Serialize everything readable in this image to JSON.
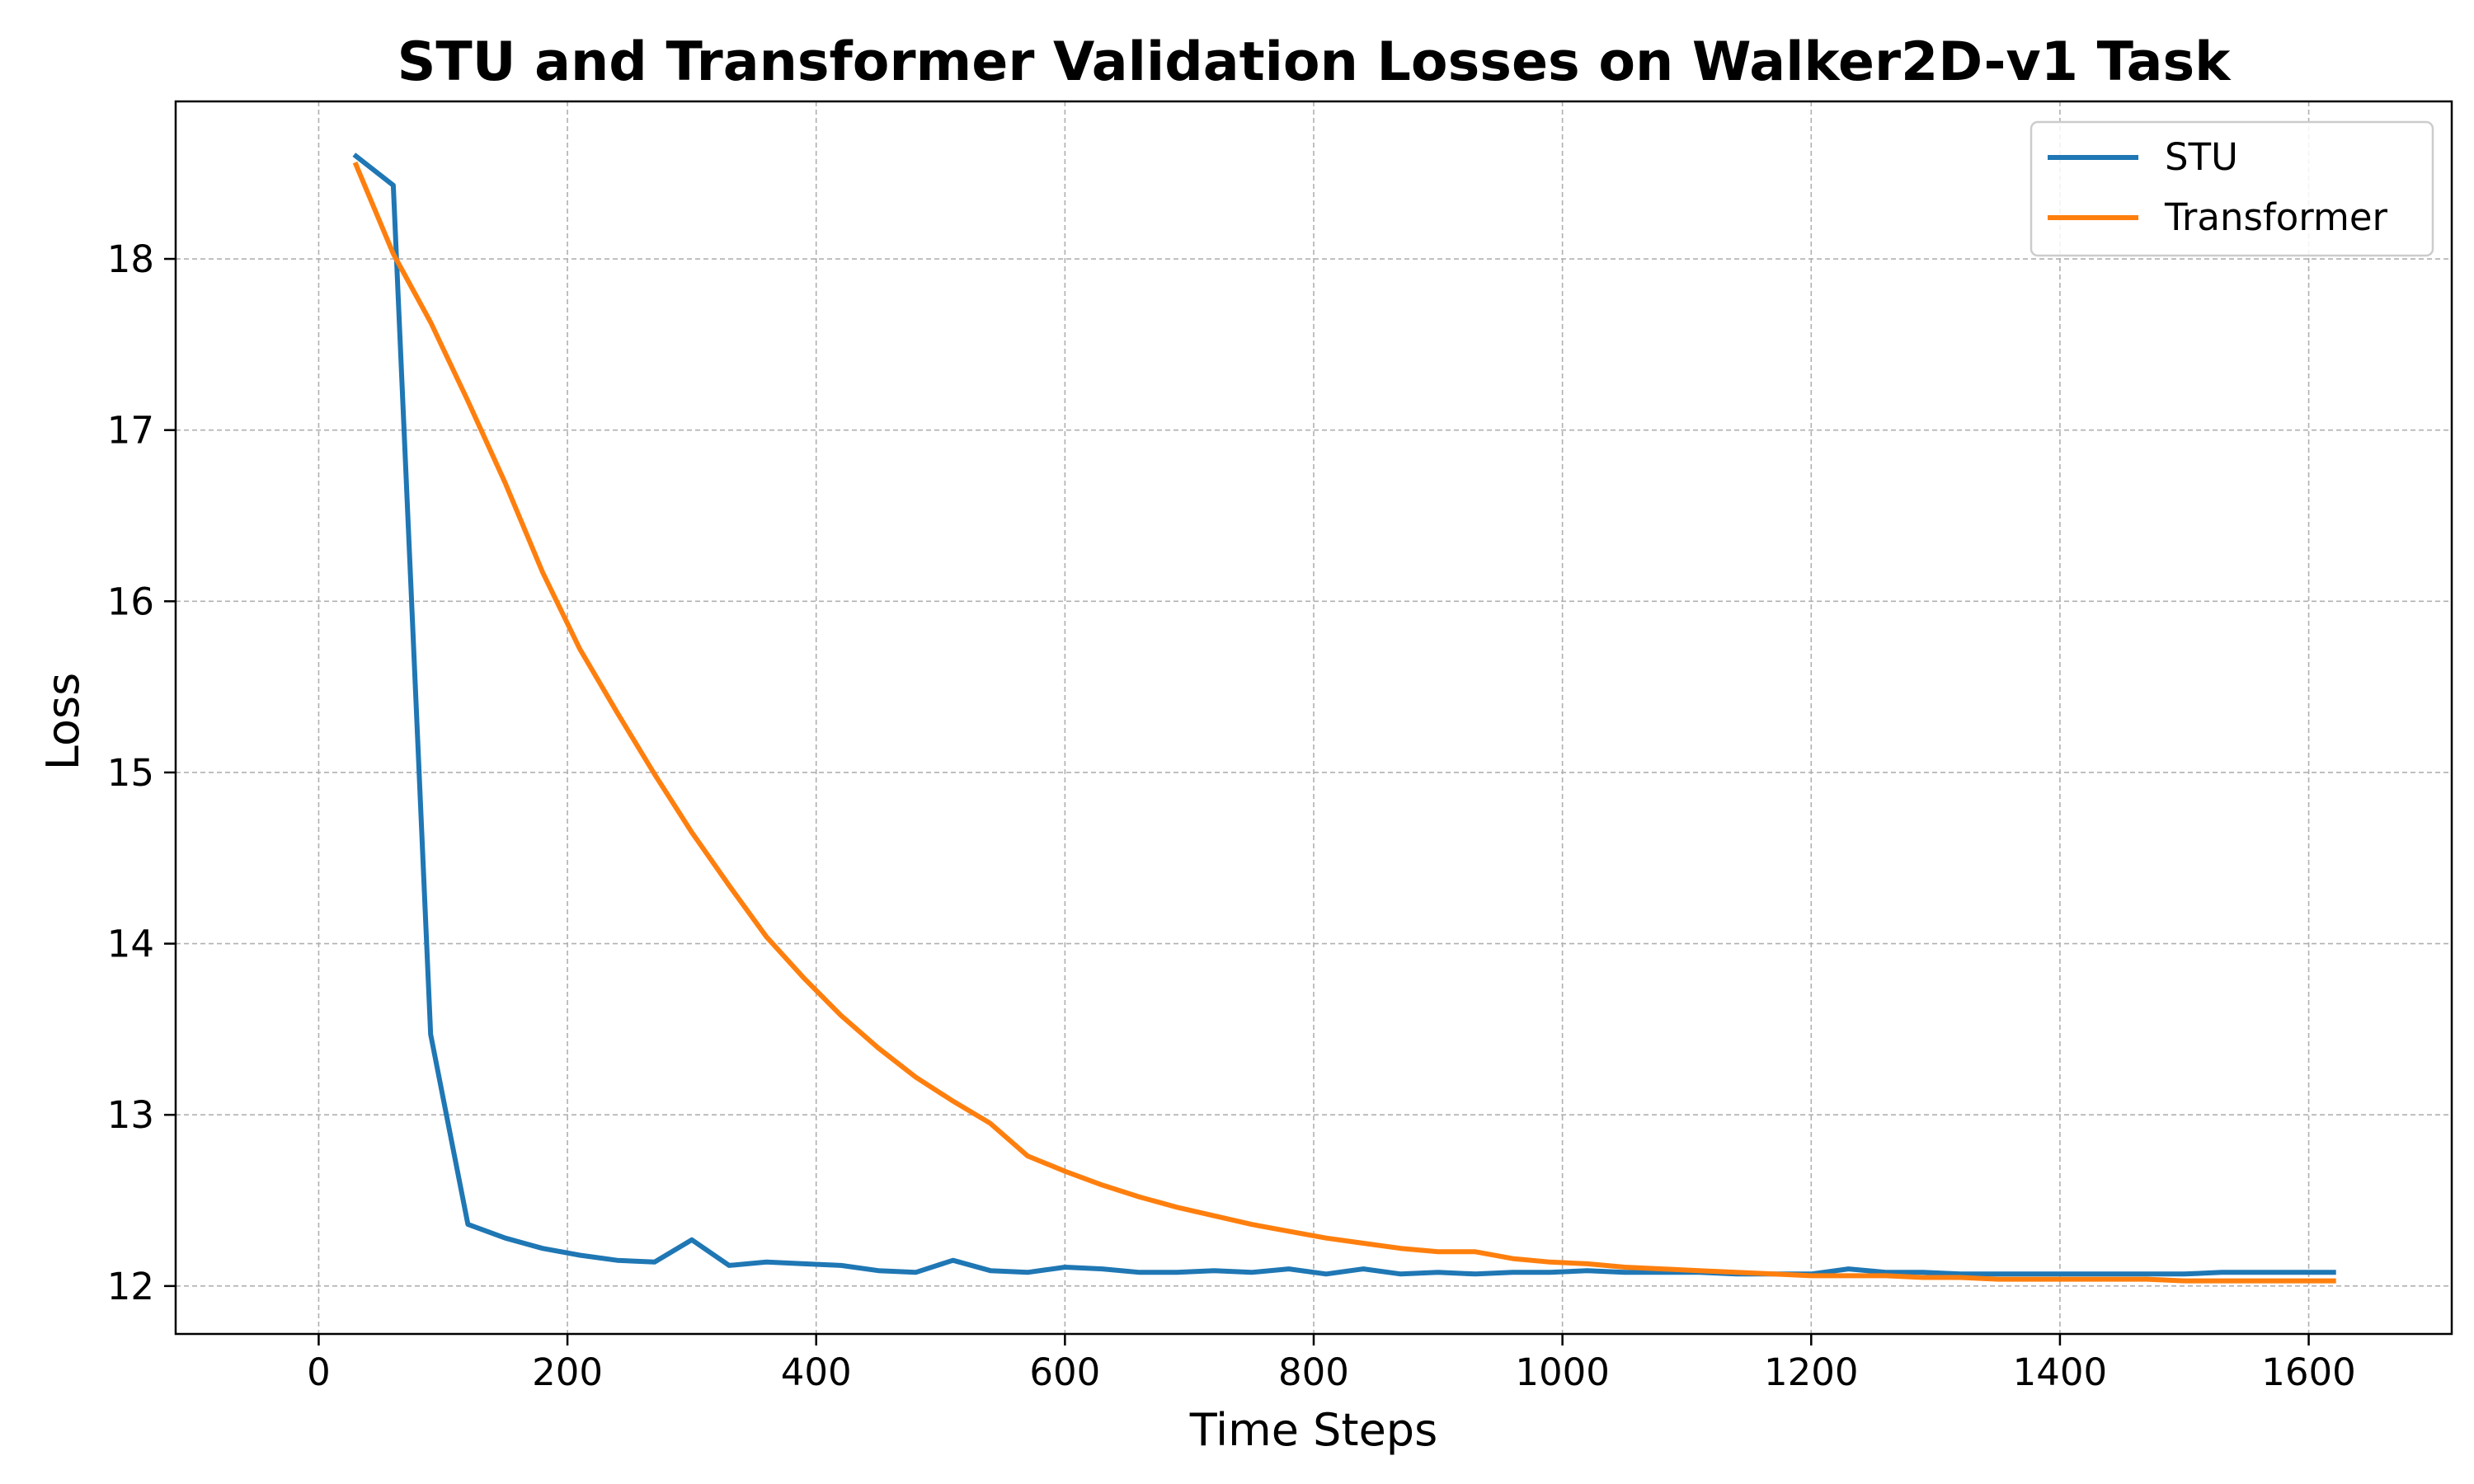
{
  "chart_data": {
    "type": "line",
    "title": "STU and Transformer Validation Losses on Walker2D-v1 Task",
    "xlabel": "Time Steps",
    "ylabel": "Loss",
    "xlim": [
      -115,
      1715
    ],
    "ylim": [
      11.72,
      18.92
    ],
    "xticks": [
      0,
      200,
      400,
      600,
      800,
      1000,
      1200,
      1400,
      1600
    ],
    "yticks": [
      12,
      13,
      14,
      15,
      16,
      17,
      18
    ],
    "grid": true,
    "legend_position": "top-right",
    "series": [
      {
        "name": "STU",
        "color": "#1f77b4",
        "x": [
          30,
          60,
          90,
          120,
          150,
          180,
          210,
          240,
          270,
          300,
          330,
          360,
          390,
          420,
          450,
          480,
          510,
          540,
          570,
          600,
          630,
          660,
          690,
          720,
          750,
          780,
          810,
          840,
          870,
          900,
          930,
          960,
          990,
          1020,
          1050,
          1080,
          1110,
          1140,
          1170,
          1200,
          1230,
          1260,
          1290,
          1320,
          1350,
          1380,
          1410,
          1440,
          1470,
          1500,
          1530,
          1560,
          1590,
          1620
        ],
        "values": [
          18.6,
          18.43,
          13.47,
          12.36,
          12.28,
          12.22,
          12.18,
          12.15,
          12.14,
          12.27,
          12.12,
          12.14,
          12.13,
          12.12,
          12.09,
          12.08,
          12.15,
          12.09,
          12.08,
          12.11,
          12.1,
          12.08,
          12.08,
          12.09,
          12.08,
          12.1,
          12.07,
          12.1,
          12.07,
          12.08,
          12.07,
          12.08,
          12.08,
          12.09,
          12.08,
          12.08,
          12.08,
          12.07,
          12.07,
          12.07,
          12.1,
          12.08,
          12.08,
          12.07,
          12.07,
          12.07,
          12.07,
          12.07,
          12.07,
          12.07,
          12.08,
          12.08,
          12.08,
          12.08
        ]
      },
      {
        "name": "Transformer",
        "color": "#ff7f0e",
        "x": [
          30,
          60,
          90,
          120,
          150,
          180,
          210,
          240,
          270,
          300,
          330,
          360,
          390,
          420,
          450,
          480,
          510,
          540,
          570,
          600,
          630,
          660,
          690,
          720,
          750,
          780,
          810,
          840,
          870,
          900,
          930,
          960,
          990,
          1020,
          1050,
          1080,
          1110,
          1140,
          1170,
          1200,
          1230,
          1260,
          1290,
          1320,
          1350,
          1380,
          1410,
          1440,
          1470,
          1500,
          1530,
          1560,
          1590,
          1620
        ],
        "values": [
          18.55,
          18.03,
          17.63,
          17.17,
          16.69,
          16.17,
          15.72,
          15.35,
          14.99,
          14.65,
          14.34,
          14.04,
          13.8,
          13.58,
          13.39,
          13.22,
          13.08,
          12.95,
          12.76,
          12.67,
          12.59,
          12.52,
          12.46,
          12.41,
          12.36,
          12.32,
          12.28,
          12.25,
          12.22,
          12.2,
          12.2,
          12.16,
          12.14,
          12.13,
          12.11,
          12.1,
          12.09,
          12.08,
          12.07,
          12.06,
          12.06,
          12.06,
          12.05,
          12.05,
          12.04,
          12.04,
          12.04,
          12.04,
          12.04,
          12.03,
          12.03,
          12.03,
          12.03,
          12.03
        ]
      }
    ]
  }
}
